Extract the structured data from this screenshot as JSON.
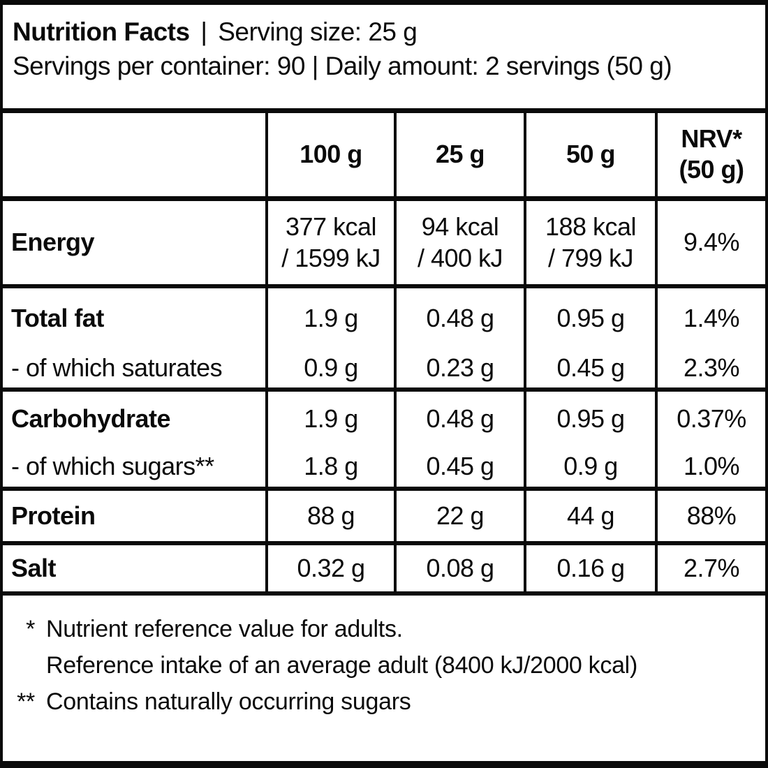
{
  "header": {
    "title": "Nutrition Facts",
    "sep": "|",
    "serving_size": "Serving size: 25 g",
    "line2": "Servings per container: 90 | Daily amount: 2 servings (50 g)"
  },
  "table": {
    "col_headers": [
      "100 g",
      "25 g",
      "50 g"
    ],
    "nrv_header": {
      "line1": "NRV*",
      "line2": "(50 g)"
    },
    "rows": [
      {
        "label": "Energy",
        "v100": {
          "kcal": "377 kcal",
          "kj": "/ 1599 kJ"
        },
        "v25": {
          "kcal": "94 kcal",
          "kj": "/ 400 kJ"
        },
        "v50": {
          "kcal": "188 kcal",
          "kj": "/ 799 kJ"
        },
        "nrv": "9.4%"
      },
      {
        "label": "Total fat",
        "v100": "1.9 g",
        "v25": "0.48 g",
        "v50": "0.95 g",
        "nrv": "1.4%"
      },
      {
        "label": "- of which saturates",
        "v100": "0.9 g",
        "v25": "0.23 g",
        "v50": "0.45 g",
        "nrv": "2.3%"
      },
      {
        "label": "Carbohydrate",
        "v100": "1.9 g",
        "v25": "0.48 g",
        "v50": "0.95 g",
        "nrv": "0.37%"
      },
      {
        "label": "- of which sugars**",
        "v100": "1.8 g",
        "v25": "0.45 g",
        "v50": "0.9 g",
        "nrv": "1.0%"
      },
      {
        "label": "Protein",
        "v100": "88 g",
        "v25": "22 g",
        "v50": "44 g",
        "nrv": "88%"
      },
      {
        "label": "Salt",
        "v100": "0.32 g",
        "v25": "0.08 g",
        "v50": "0.16 g",
        "nrv": "2.7%"
      }
    ]
  },
  "footnotes": {
    "note1_marker": "*",
    "note1_line1": "Nutrient reference value for adults.",
    "note1_line2": "Reference intake of an average adult (8400 kJ/2000 kcal)",
    "note2_marker": "**",
    "note2_text": "Contains naturally occurring sugars"
  },
  "colors": {
    "ink": "#0a0a0a",
    "background": "#ffffff"
  }
}
